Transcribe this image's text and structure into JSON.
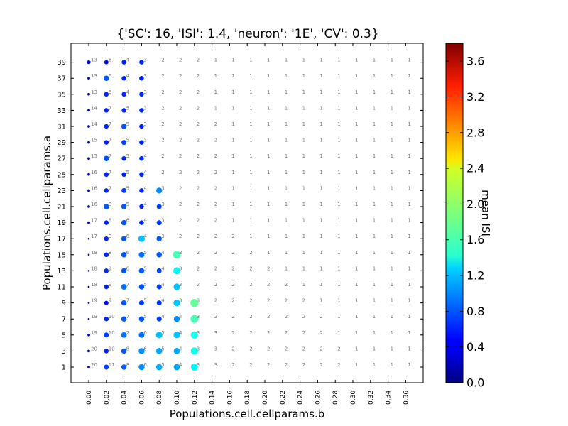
{
  "chart_data": {
    "type": "scatter",
    "title": "{'SC': 16, 'ISI': 1.4, 'neuron': '1E', 'CV': 0.3}",
    "xlabel": "Populations.cell.cellparams.b",
    "ylabel": "Populations.cell.cellparams.a",
    "x_ticks": [
      "0.00",
      "0.02",
      "0.04",
      "0.06",
      "0.08",
      "0.10",
      "0.12",
      "0.14",
      "0.16",
      "0.18",
      "0.20",
      "0.22",
      "0.24",
      "0.26",
      "0.28",
      "0.30",
      "0.32",
      "0.34",
      "0.36"
    ],
    "y_ticks": [
      "1",
      "3",
      "5",
      "7",
      "9",
      "11",
      "13",
      "15",
      "17",
      "19",
      "21",
      "23",
      "25",
      "27",
      "29",
      "31",
      "33",
      "35",
      "37",
      "39"
    ],
    "colorbar": {
      "label": "mean ISI",
      "min": 0.0,
      "max": 3.8,
      "tick_labels": [
        "0.0",
        "0.4",
        "0.8",
        "1.2",
        "1.6",
        "2.0",
        "2.4",
        "2.8",
        "3.2",
        "3.6"
      ],
      "colormap": "jet"
    },
    "grid": false,
    "marker_encoding": "marker size and color encode mean ISI; small grey numbers are spike counts (SC)",
    "sc_counts": [
      [
        20,
        11,
        8,
        6,
        5,
        4,
        3,
        3,
        2,
        2,
        2,
        2,
        2,
        2,
        2,
        1,
        1,
        1,
        1
      ],
      [
        20,
        10,
        8,
        6,
        5,
        4,
        3,
        3,
        2,
        2,
        2,
        2,
        2,
        2,
        2,
        1,
        1,
        1,
        1
      ],
      [
        19,
        10,
        7,
        6,
        5,
        4,
        3,
        3,
        2,
        2,
        2,
        2,
        2,
        2,
        1,
        1,
        1,
        1,
        1
      ],
      [
        19,
        10,
        7,
        5,
        4,
        4,
        3,
        2,
        2,
        2,
        2,
        2,
        2,
        2,
        1,
        1,
        1,
        1,
        1
      ],
      [
        19,
        9,
        7,
        5,
        4,
        3,
        3,
        2,
        2,
        2,
        2,
        2,
        2,
        1,
        1,
        1,
        1,
        1,
        1
      ],
      [
        18,
        9,
        7,
        5,
        4,
        3,
        2,
        2,
        2,
        2,
        2,
        2,
        1,
        1,
        1,
        1,
        1,
        1,
        1
      ],
      [
        18,
        9,
        6,
        5,
        4,
        3,
        2,
        2,
        2,
        2,
        2,
        1,
        1,
        1,
        1,
        1,
        1,
        1,
        1
      ],
      [
        18,
        8,
        6,
        5,
        4,
        3,
        2,
        2,
        2,
        2,
        1,
        1,
        1,
        1,
        1,
        1,
        1,
        1,
        1
      ],
      [
        17,
        8,
        6,
        4,
        3,
        2,
        2,
        2,
        2,
        1,
        1,
        1,
        1,
        1,
        1,
        1,
        1,
        1,
        1
      ],
      [
        17,
        8,
        6,
        4,
        3,
        2,
        2,
        2,
        1,
        1,
        1,
        1,
        1,
        1,
        1,
        1,
        1,
        1,
        1
      ],
      [
        16,
        8,
        5,
        4,
        3,
        2,
        2,
        2,
        1,
        1,
        1,
        1,
        1,
        1,
        1,
        1,
        1,
        1,
        1
      ],
      [
        16,
        7,
        5,
        4,
        3,
        2,
        2,
        2,
        1,
        1,
        1,
        1,
        1,
        1,
        1,
        1,
        1,
        1,
        1
      ],
      [
        16,
        7,
        5,
        4,
        2,
        2,
        2,
        2,
        1,
        1,
        1,
        1,
        1,
        1,
        1,
        1,
        1,
        1,
        1
      ],
      [
        15,
        7,
        5,
        4,
        2,
        2,
        2,
        2,
        1,
        1,
        1,
        1,
        1,
        1,
        1,
        1,
        1,
        1,
        1
      ],
      [
        15,
        7,
        5,
        3,
        2,
        2,
        2,
        2,
        1,
        1,
        1,
        1,
        1,
        1,
        1,
        1,
        1,
        1,
        1
      ],
      [
        14,
        7,
        5,
        3,
        2,
        2,
        2,
        2,
        1,
        1,
        1,
        1,
        1,
        1,
        1,
        1,
        1,
        1,
        1
      ],
      [
        14,
        7,
        5,
        3,
        2,
        2,
        2,
        1,
        1,
        1,
        1,
        1,
        1,
        1,
        1,
        1,
        1,
        1,
        1
      ],
      [
        13,
        6,
        4,
        3,
        2,
        2,
        2,
        1,
        1,
        1,
        1,
        1,
        1,
        1,
        1,
        1,
        1,
        1,
        1
      ],
      [
        13,
        6,
        4,
        3,
        2,
        2,
        2,
        1,
        1,
        1,
        1,
        1,
        1,
        1,
        1,
        1,
        1,
        1,
        1
      ],
      [
        13,
        6,
        4,
        3,
        2,
        2,
        2,
        1,
        1,
        1,
        1,
        1,
        1,
        1,
        1,
        1,
        1,
        1,
        1
      ]
    ],
    "mean_isi": [
      [
        0.2,
        0.7,
        0.8,
        1.0,
        1.1,
        1.1,
        1.4
      ],
      [
        0.2,
        0.6,
        0.8,
        1.0,
        1.1,
        1.1,
        1.5
      ],
      [
        0.2,
        0.7,
        0.9,
        0.9,
        1.2,
        1.2,
        1.5
      ],
      [
        0.1,
        0.6,
        0.8,
        0.8,
        0.7,
        1.0,
        1.7
      ],
      [
        0.1,
        0.5,
        0.8,
        0.7,
        0.7,
        1.2,
        1.8
      ],
      [
        0.1,
        0.6,
        0.9,
        0.8,
        0.7,
        1.2
      ],
      [
        0.1,
        0.6,
        0.8,
        0.8,
        0.7,
        1.4
      ],
      [
        0.1,
        0.6,
        0.8,
        0.9,
        0.8,
        1.7
      ],
      [
        0.1,
        0.6,
        0.8,
        1.2,
        0.8
      ],
      [
        0.2,
        0.6,
        0.8,
        0.6,
        0.7
      ],
      [
        0.2,
        0.8,
        0.8,
        0.6,
        0.7
      ],
      [
        0.2,
        0.6,
        0.7,
        0.6,
        1.0
      ],
      [
        0.2,
        0.6,
        0.6,
        0.6
      ],
      [
        0.2,
        0.8,
        0.6,
        0.6
      ],
      [
        0.2,
        0.6,
        0.7,
        0.6
      ],
      [
        0.2,
        0.6,
        0.8,
        0.6
      ],
      [
        0.2,
        0.6,
        0.6,
        0.6
      ],
      [
        0.2,
        0.6,
        0.6,
        0.6
      ],
      [
        0.2,
        0.8,
        0.6,
        0.6
      ],
      [
        0.4,
        0.5,
        0.6,
        0.6
      ]
    ]
  }
}
